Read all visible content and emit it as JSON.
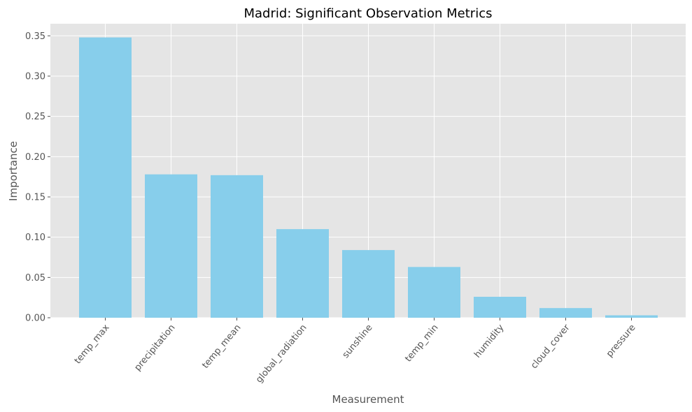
{
  "chart_data": {
    "type": "bar",
    "title": "Madrid: Significant Observation Metrics",
    "xlabel": "Measurement",
    "ylabel": "Importance",
    "categories": [
      "temp_max",
      "precipitation",
      "temp_mean",
      "global_radiation",
      "sunshine",
      "temp_min",
      "humidity",
      "cloud_cover",
      "pressure"
    ],
    "values": [
      0.348,
      0.178,
      0.177,
      0.11,
      0.084,
      0.063,
      0.026,
      0.012,
      0.003
    ],
    "ylim": [
      0,
      0.365
    ],
    "yticks": [
      "0.00",
      "0.05",
      "0.10",
      "0.15",
      "0.20",
      "0.25",
      "0.30",
      "0.35"
    ],
    "grid": true,
    "legend": "none",
    "colors": {
      "bar": "#87CEEB",
      "plot_background": "#E5E5E5",
      "grid": "#FFFFFF"
    }
  }
}
